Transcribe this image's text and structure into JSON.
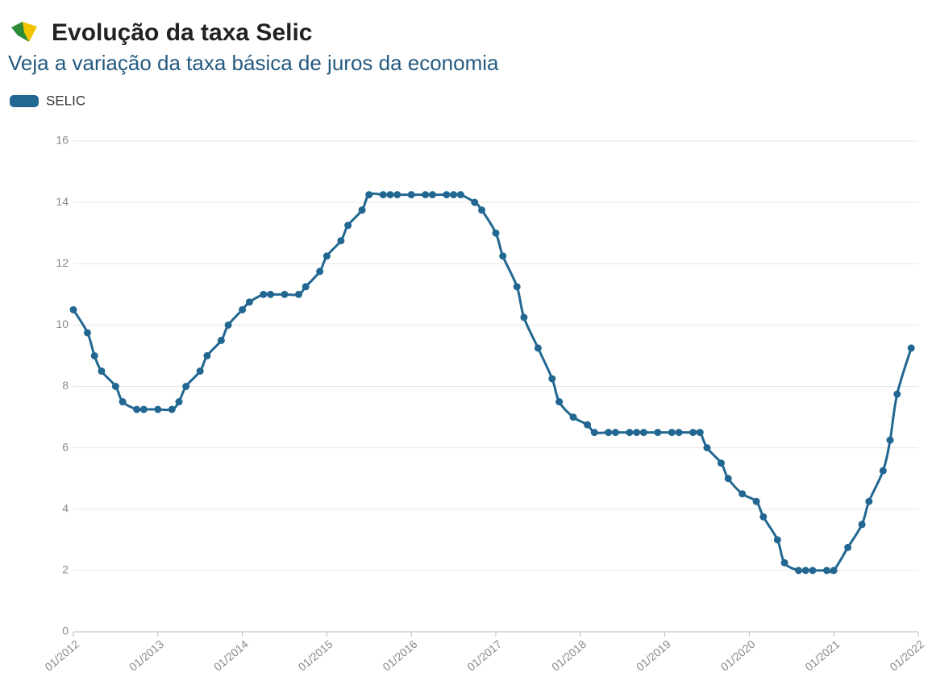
{
  "chart_data": {
    "type": "line",
    "title": "Evolução da taxa Selic",
    "subtitle": "Veja a variação da taxa básica de juros da economia",
    "x": [
      "01/2012",
      "03/2012",
      "04/2012",
      "05/2012",
      "07/2012",
      "08/2012",
      "10/2012",
      "11/2012",
      "01/2013",
      "03/2013",
      "04/2013",
      "05/2013",
      "07/2013",
      "08/2013",
      "10/2013",
      "11/2013",
      "01/2014",
      "02/2014",
      "04/2014",
      "05/2014",
      "07/2014",
      "09/2014",
      "10/2014",
      "12/2014",
      "01/2015",
      "03/2015",
      "04/2015",
      "06/2015",
      "07/2015",
      "09/2015",
      "10/2015",
      "11/2015",
      "01/2016",
      "03/2016",
      "04/2016",
      "06/2016",
      "07/2016",
      "08/2016",
      "10/2016",
      "11/2016",
      "01/2017",
      "02/2017",
      "04/2017",
      "05/2017",
      "07/2017",
      "09/2017",
      "10/2017",
      "12/2017",
      "02/2018",
      "03/2018",
      "05/2018",
      "06/2018",
      "08/2018",
      "09/2018",
      "10/2018",
      "12/2018",
      "02/2019",
      "03/2019",
      "05/2019",
      "06/2019",
      "07/2019",
      "09/2019",
      "10/2019",
      "12/2019",
      "02/2020",
      "03/2020",
      "05/2020",
      "06/2020",
      "08/2020",
      "09/2020",
      "10/2020",
      "12/2020",
      "01/2021",
      "03/2021",
      "05/2021",
      "06/2021",
      "08/2021",
      "09/2021",
      "10/2021",
      "12/2021"
    ],
    "series": [
      {
        "name": "SELIC",
        "color": "#216791",
        "values": [
          10.5,
          9.75,
          9.0,
          8.5,
          8.0,
          7.5,
          7.25,
          7.25,
          7.25,
          7.25,
          7.5,
          8.0,
          8.5,
          9.0,
          9.5,
          10.0,
          10.5,
          10.75,
          11.0,
          11.0,
          11.0,
          11.0,
          11.25,
          11.75,
          12.25,
          12.75,
          13.25,
          13.75,
          14.25,
          14.25,
          14.25,
          14.25,
          14.25,
          14.25,
          14.25,
          14.25,
          14.25,
          14.25,
          14.0,
          13.75,
          13.0,
          12.25,
          11.25,
          10.25,
          9.25,
          8.25,
          7.5,
          7.0,
          6.75,
          6.5,
          6.5,
          6.5,
          6.5,
          6.5,
          6.5,
          6.5,
          6.5,
          6.5,
          6.5,
          6.5,
          6.0,
          5.5,
          5.0,
          4.5,
          4.25,
          3.75,
          3.0,
          2.25,
          2.0,
          2.0,
          2.0,
          2.0,
          2.0,
          2.75,
          3.5,
          4.25,
          5.25,
          6.25,
          7.75,
          9.25
        ]
      }
    ],
    "xlim": [
      "01/2012",
      "01/2022"
    ],
    "xticks": [
      "01/2012",
      "01/2013",
      "01/2014",
      "01/2015",
      "01/2016",
      "01/2017",
      "01/2018",
      "01/2019",
      "01/2020",
      "01/2021",
      "01/2022"
    ],
    "ylim": [
      0,
      16
    ],
    "yticks": [
      0,
      2,
      4,
      6,
      8,
      10,
      12,
      14,
      16
    ],
    "grid": true,
    "legend": "top-left"
  }
}
